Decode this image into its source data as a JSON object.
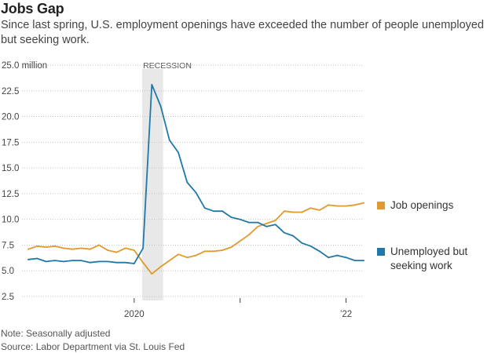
{
  "title": "Jobs Gap",
  "subtitle": "Since last spring, U.S. employment openings have exceeded the number of people unemployed but seeking work.",
  "footer": {
    "note": "Note: Seasonally adjusted",
    "source": "Source: Labor Department via St. Louis Fed"
  },
  "colors": {
    "openings": "#e09a2d",
    "unemployed": "#1f78a8",
    "recession": "#e8e8e8",
    "grid": "#c4c4c4"
  },
  "chart_data": {
    "type": "line",
    "title": "Jobs Gap",
    "ylabel": "million",
    "ylim": [
      2.5,
      25.0
    ],
    "yticks": [
      "25.0",
      "22.5",
      "20.0",
      "17.5",
      "15.0",
      "12.5",
      "10.0",
      "7.5",
      "5.0",
      "2.5"
    ],
    "ytick_values": [
      25.0,
      22.5,
      20.0,
      17.5,
      15.0,
      12.5,
      10.0,
      7.5,
      5.0,
      2.5
    ],
    "y_unit_label": "million",
    "xlim": [
      "2019-01",
      "2022-03"
    ],
    "xticks": [
      {
        "date": "2020-01",
        "label": "2020"
      },
      {
        "date": "2021-01",
        "label": ""
      },
      {
        "date": "2022-01",
        "label": "’22"
      }
    ],
    "recession": {
      "label": "RECESSION",
      "start": "2020-02",
      "end": "2020-04"
    },
    "dates": [
      "2019-01",
      "2019-02",
      "2019-03",
      "2019-04",
      "2019-05",
      "2019-06",
      "2019-07",
      "2019-08",
      "2019-09",
      "2019-10",
      "2019-11",
      "2019-12",
      "2020-01",
      "2020-02",
      "2020-03",
      "2020-04",
      "2020-05",
      "2020-06",
      "2020-07",
      "2020-08",
      "2020-09",
      "2020-10",
      "2020-11",
      "2020-12",
      "2021-01",
      "2021-02",
      "2021-03",
      "2021-04",
      "2021-05",
      "2021-06",
      "2021-07",
      "2021-08",
      "2021-09",
      "2021-10",
      "2021-11",
      "2021-12",
      "2022-01",
      "2022-02",
      "2022-03"
    ],
    "series": [
      {
        "name": "Job openings",
        "key": "openings",
        "values": [
          7.1,
          7.4,
          7.3,
          7.4,
          7.2,
          7.1,
          7.2,
          7.1,
          7.5,
          7.0,
          6.8,
          7.2,
          7.0,
          5.8,
          4.7,
          5.4,
          6.0,
          6.6,
          6.3,
          6.5,
          6.9,
          6.9,
          7.0,
          7.3,
          7.9,
          8.5,
          9.3,
          9.6,
          9.9,
          10.8,
          10.7,
          10.7,
          11.1,
          10.9,
          11.4,
          11.3,
          11.3,
          11.4,
          11.6
        ]
      },
      {
        "name": "Unemployed but seeking work",
        "key": "unemployed",
        "values": [
          6.1,
          6.2,
          5.9,
          6.0,
          5.9,
          6.0,
          6.0,
          5.8,
          5.9,
          5.9,
          5.8,
          5.8,
          5.7,
          7.2,
          23.1,
          21.0,
          17.7,
          16.5,
          13.6,
          12.6,
          11.1,
          10.8,
          10.8,
          10.2,
          10.0,
          9.7,
          9.7,
          9.3,
          9.5,
          8.7,
          8.4,
          7.7,
          7.4,
          6.9,
          6.3,
          6.5,
          6.3,
          6.0,
          6.0
        ]
      }
    ],
    "legend_position": "right"
  }
}
